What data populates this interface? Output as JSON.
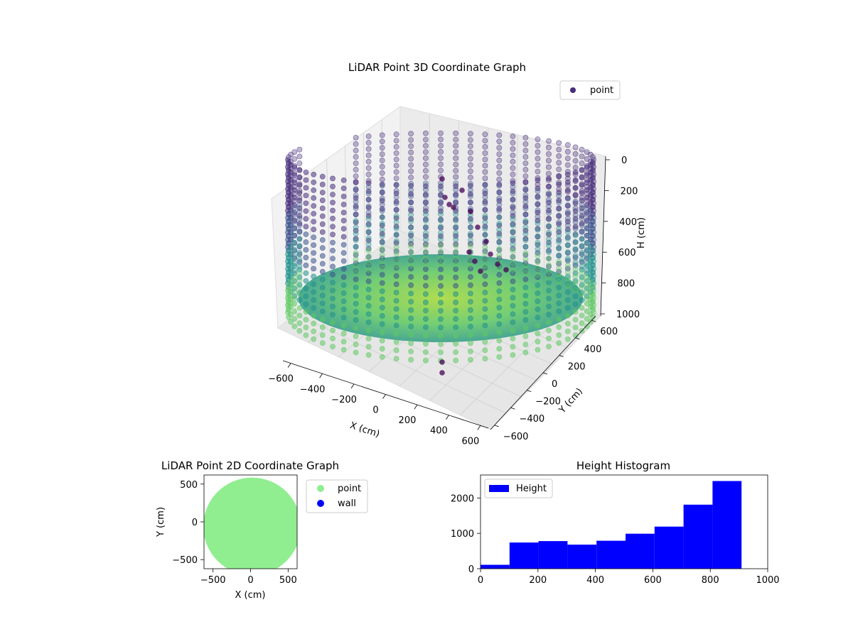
{
  "colors": {
    "point_dark": "#440154",
    "point_mid": "#21918c",
    "point_light": "#7ad151",
    "floor_green": "#8fd14f",
    "point_2d": "#90ee90",
    "wall_2d": "#0000ff",
    "histogram": "#0000ff",
    "pane": "#f2f2f2",
    "grid": "#d0d0d0"
  },
  "chart_data": [
    {
      "type": "scatter",
      "projection": "3d",
      "title": "LiDAR Point 3D Coordinate Graph",
      "xlabel": "X (cm)",
      "ylabel": "Y (cm)",
      "zlabel": "H (cm)",
      "xlim": [
        -650,
        650
      ],
      "ylim": [
        -650,
        650
      ],
      "zlim": [
        1000,
        0
      ],
      "xticks": [
        -600,
        -400,
        -200,
        0,
        200,
        400,
        600
      ],
      "yticks": [
        -600,
        -400,
        -200,
        0,
        200,
        400,
        600
      ],
      "zticks": [
        0,
        200,
        400,
        600,
        800,
        1000
      ],
      "legend": [
        "point"
      ],
      "legend_position": "upper-right",
      "colormap": "viridis",
      "grid": true,
      "shape": "cylindrical wall of points, radius about 600 cm, heights 0 to 1000 cm, open on one side, with a dense floor and a small cluster near the center"
    },
    {
      "type": "scatter",
      "title": "LiDAR Point 2D Coordinate Graph",
      "xlabel": "X (cm)",
      "ylabel": "Y (cm)",
      "xlim": [
        -620,
        620
      ],
      "ylim": [
        -620,
        620
      ],
      "xticks": [
        -500,
        0,
        500
      ],
      "yticks": [
        -500,
        0,
        500
      ],
      "legend": [
        "point",
        "wall"
      ],
      "legend_position": "outside-right",
      "grid": false,
      "shape": "filled disk of points, radius about 650 cm, clipped by the axes"
    },
    {
      "type": "bar",
      "subtype": "histogram",
      "title": "Height Histogram",
      "legend": [
        "Height"
      ],
      "legend_position": "upper-left",
      "xlim": [
        0,
        1000
      ],
      "ylim": [
        0,
        2650
      ],
      "xticks": [
        0,
        200,
        400,
        600,
        800,
        1000
      ],
      "yticks": [
        0,
        1000,
        2000
      ],
      "bins": [
        {
          "start": 0,
          "end": 101,
          "count": 110
        },
        {
          "start": 101,
          "end": 202,
          "count": 740
        },
        {
          "start": 202,
          "end": 303,
          "count": 780
        },
        {
          "start": 303,
          "end": 404,
          "count": 680
        },
        {
          "start": 404,
          "end": 505,
          "count": 790
        },
        {
          "start": 505,
          "end": 606,
          "count": 990
        },
        {
          "start": 606,
          "end": 707,
          "count": 1190
        },
        {
          "start": 707,
          "end": 808,
          "count": 1810
        },
        {
          "start": 808,
          "end": 909,
          "count": 2480
        }
      ],
      "grid": false
    }
  ]
}
